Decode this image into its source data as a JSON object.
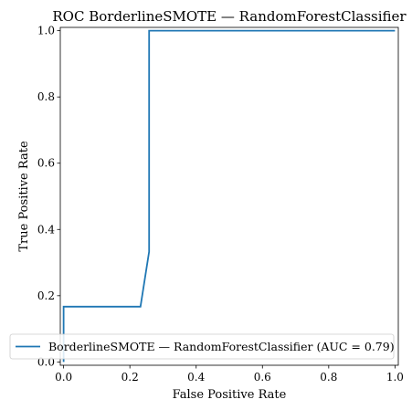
{
  "chart_data": {
    "type": "line",
    "title": "ROC BorderlineSMOTE — RandomForestClassifier",
    "xlabel": "False Positive Rate",
    "ylabel": "True Positive Rate",
    "xlim": [
      -0.01,
      1.01
    ],
    "ylim": [
      -0.01,
      1.01
    ],
    "grid": false,
    "legend_position": "lower-right",
    "xticks": [
      "0.0",
      "0.2",
      "0.4",
      "0.6",
      "0.8",
      "1.0"
    ],
    "yticks": [
      "0.0",
      "0.2",
      "0.4",
      "0.6",
      "0.8",
      "1.0"
    ],
    "series": [
      {
        "name": "BorderlineSMOTE — RandomForestClassifier (AUC = 0.79)",
        "color": "#1f77b4",
        "x": [
          0.0,
          0.0,
          0.0,
          0.232,
          0.258,
          0.258,
          1.0
        ],
        "y": [
          0.0,
          0.0,
          0.167,
          0.167,
          0.333,
          1.0,
          1.0
        ]
      }
    ]
  }
}
